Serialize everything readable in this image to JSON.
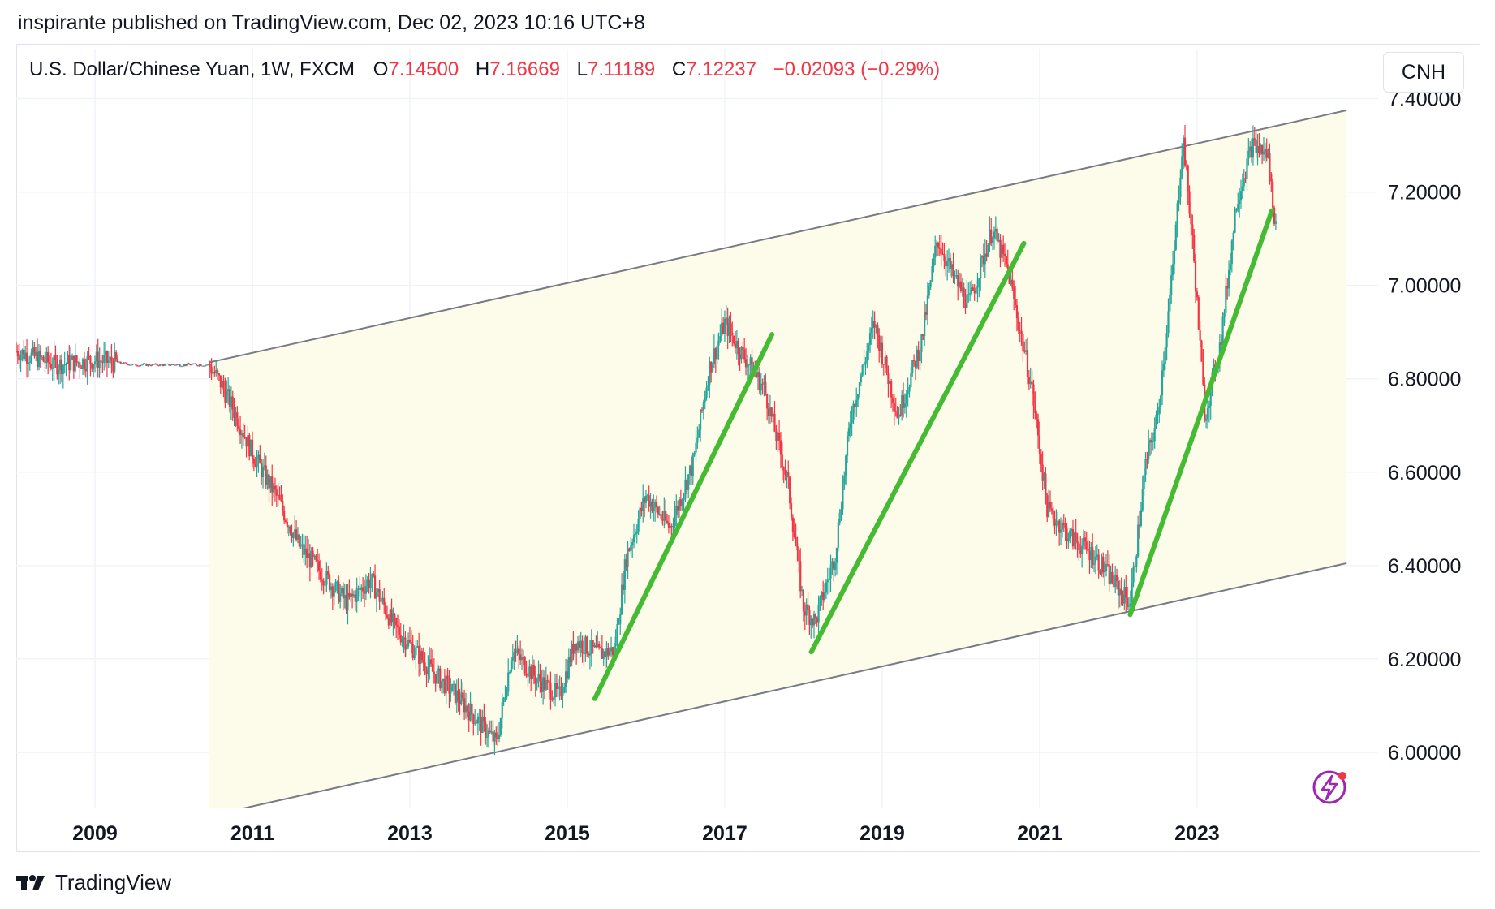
{
  "header": {
    "published_line": "inspirante published on TradingView.com, Dec 02, 2023 10:16 UTC+8"
  },
  "legend": {
    "symbol": "U.S. Dollar/Chinese Yuan, 1W, FXCM",
    "open_label": "O",
    "open": "7.14500",
    "high_label": "H",
    "high": "7.16669",
    "low_label": "L",
    "low": "7.11189",
    "close_label": "C",
    "close": "7.12237",
    "change": "−0.02093 (−0.29%)"
  },
  "currency_button": "CNH",
  "footer": {
    "brand": "TradingView"
  },
  "icons": {
    "lightning": "lightning-icon",
    "logo": "tradingview-logo-icon"
  },
  "colors": {
    "up": "#26a69a",
    "down": "#f23645",
    "trend": "#44bb33",
    "channel_line": "#787b86",
    "channel_fill": "#fdfbe9",
    "grid": "#f0f3fa",
    "lightning": "#9c27b0"
  },
  "chart_data": {
    "type": "line",
    "ylim": [
      5.88,
      7.42
    ],
    "xlim": [
      2008.0,
      2025.3
    ],
    "y_ticks": [
      "7.40000",
      "7.20000",
      "7.00000",
      "6.80000",
      "6.60000",
      "6.40000",
      "6.20000",
      "6.00000"
    ],
    "y_tick_values": [
      7.4,
      7.2,
      7.0,
      6.8,
      6.6,
      6.4,
      6.2,
      6.0
    ],
    "x_ticks": [
      "2009",
      "2011",
      "2013",
      "2015",
      "2017",
      "2019",
      "2021",
      "2023"
    ],
    "x_tick_values": [
      2009,
      2011,
      2013,
      2015,
      2017,
      2019,
      2021,
      2023
    ],
    "series": [
      {
        "x": [
          2008.0,
          2008.5,
          2009.0,
          2009.5,
          2010.0,
          2010.45,
          2010.6,
          2010.8,
          2011.0,
          2011.3,
          2011.6,
          2011.9,
          2012.2,
          2012.5,
          2012.8,
          2013.0,
          2013.3,
          2013.6,
          2013.9,
          2014.1,
          2014.3,
          2014.6,
          2014.9,
          2015.1,
          2015.4,
          2015.6,
          2015.75,
          2016.0,
          2016.3,
          2016.6,
          2016.8,
          2017.0,
          2017.2,
          2017.5,
          2017.8,
          2018.0,
          2018.15,
          2018.4,
          2018.6,
          2018.9,
          2019.2,
          2019.5,
          2019.7,
          2019.9,
          2020.1,
          2020.4,
          2020.6,
          2020.9,
          2021.1,
          2021.4,
          2021.7,
          2022.0,
          2022.15,
          2022.35,
          2022.5,
          2022.7,
          2022.82,
          2022.95,
          2023.1,
          2023.3,
          2023.5,
          2023.7,
          2023.9,
          2024.0
        ],
        "values": [
          6.86,
          6.83,
          6.84,
          6.83,
          6.83,
          6.83,
          6.79,
          6.72,
          6.64,
          6.55,
          6.44,
          6.38,
          6.32,
          6.37,
          6.27,
          6.23,
          6.17,
          6.12,
          6.06,
          6.02,
          6.22,
          6.16,
          6.12,
          6.24,
          6.21,
          6.22,
          6.42,
          6.55,
          6.48,
          6.62,
          6.82,
          6.92,
          6.86,
          6.78,
          6.58,
          6.31,
          6.28,
          6.42,
          6.72,
          6.92,
          6.72,
          6.88,
          7.1,
          7.02,
          6.96,
          7.12,
          7.03,
          6.78,
          6.52,
          6.46,
          6.42,
          6.35,
          6.32,
          6.62,
          6.72,
          7.05,
          7.32,
          7.08,
          6.72,
          6.88,
          7.18,
          7.3,
          7.28,
          7.12
        ]
      }
    ],
    "channel": {
      "upper": [
        [
          2010.45,
          6.835
        ],
        [
          2024.9,
          7.375
        ]
      ],
      "lower": [
        [
          2010.75,
          5.875
        ],
        [
          2024.9,
          6.405
        ]
      ]
    },
    "trendlines": [
      [
        [
          2015.35,
          6.115
        ],
        [
          2017.6,
          6.895
        ]
      ],
      [
        [
          2018.1,
          6.215
        ],
        [
          2020.8,
          7.09
        ]
      ],
      [
        [
          2022.15,
          6.295
        ],
        [
          2023.95,
          7.16
        ]
      ]
    ]
  }
}
